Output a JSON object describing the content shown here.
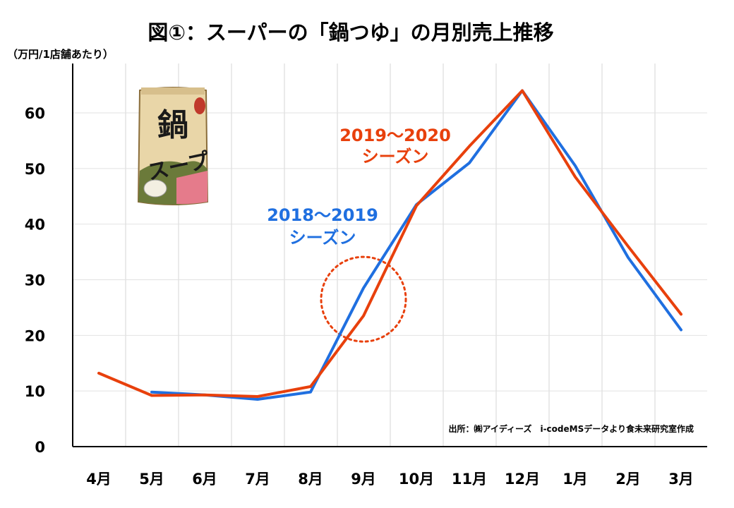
{
  "chart_data": {
    "type": "line",
    "title": "図①：スーパーの「鍋つゆ」の月別売上推移",
    "ylabel": "（万円/1店舗あたり）",
    "xlabel": "",
    "categories": [
      "4月",
      "5月",
      "6月",
      "7月",
      "8月",
      "9月",
      "10月",
      "11月",
      "12月",
      "1月",
      "2月",
      "3月"
    ],
    "ylim": [
      0,
      65
    ],
    "yticks": [
      0,
      10,
      20,
      30,
      40,
      50,
      60
    ],
    "grid": "vertical",
    "series": [
      {
        "name": "2018～2019シーズン",
        "label_lines": [
          "2018～2019",
          "シーズン"
        ],
        "color": "#1f6fe0",
        "values": [
          null,
          9.8,
          9.3,
          8.5,
          9.8,
          28.5,
          43.5,
          51.0,
          64.0,
          50.5,
          34.0,
          21.0
        ]
      },
      {
        "name": "2019～2020シーズン",
        "label_lines": [
          "2019～2020",
          "シーズン"
        ],
        "color": "#e8400c",
        "values": [
          13.2,
          9.2,
          9.3,
          9.0,
          10.8,
          23.5,
          43.3,
          54.0,
          64.0,
          48.5,
          36.0,
          23.8
        ]
      }
    ],
    "annotation": {
      "type": "dotted-circle",
      "month": "9月",
      "value": 26.5,
      "color": "#e8400c"
    },
    "source": "出所：㈱アイディーズ　i-codeMSデータより食未来研究室作成"
  },
  "illustration": {
    "name": "nabe-soup-package",
    "label": "鍋スープ",
    "line1": "鍋",
    "line2": "スープ"
  }
}
